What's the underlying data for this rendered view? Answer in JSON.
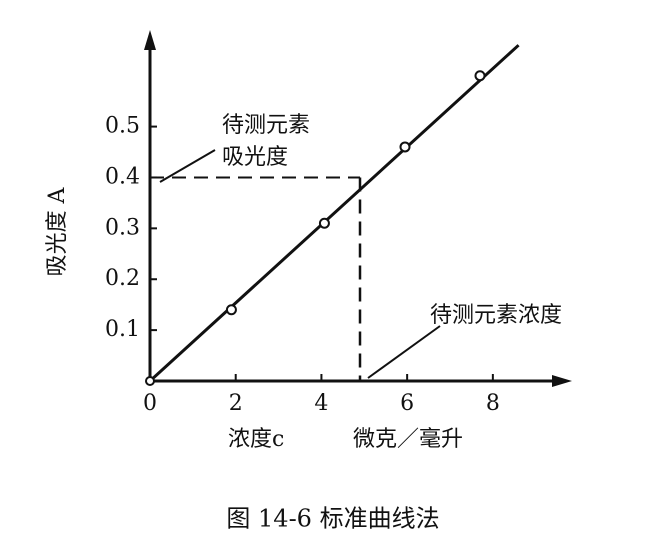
{
  "chart_data": {
    "type": "scatter",
    "caption": "图 14-6  标准曲线法",
    "y_label": "吸光度 A",
    "x_label": "浓度c",
    "x_unit": "微克／毫升",
    "annotations": [
      "待测元素",
      "吸光度",
      "待测元素浓度"
    ],
    "series": [
      {
        "x": [
          1.9,
          4.07,
          5.95,
          7.7
        ],
        "values": [
          0.14,
          0.31,
          0.46,
          0.6
        ],
        "color": "#111111"
      }
    ],
    "fit_line": {
      "x": [
        0,
        8.6
      ],
      "y": [
        0,
        0.66
      ]
    },
    "reference": {
      "x": 4.9,
      "y": 0.4
    },
    "xlim": [
      0,
      9.8
    ],
    "ylim": [
      0,
      0.68
    ],
    "xticks": [
      0,
      2,
      4,
      6,
      8
    ],
    "yticks": [
      0.1,
      0.2,
      0.3,
      0.4,
      0.5
    ]
  }
}
